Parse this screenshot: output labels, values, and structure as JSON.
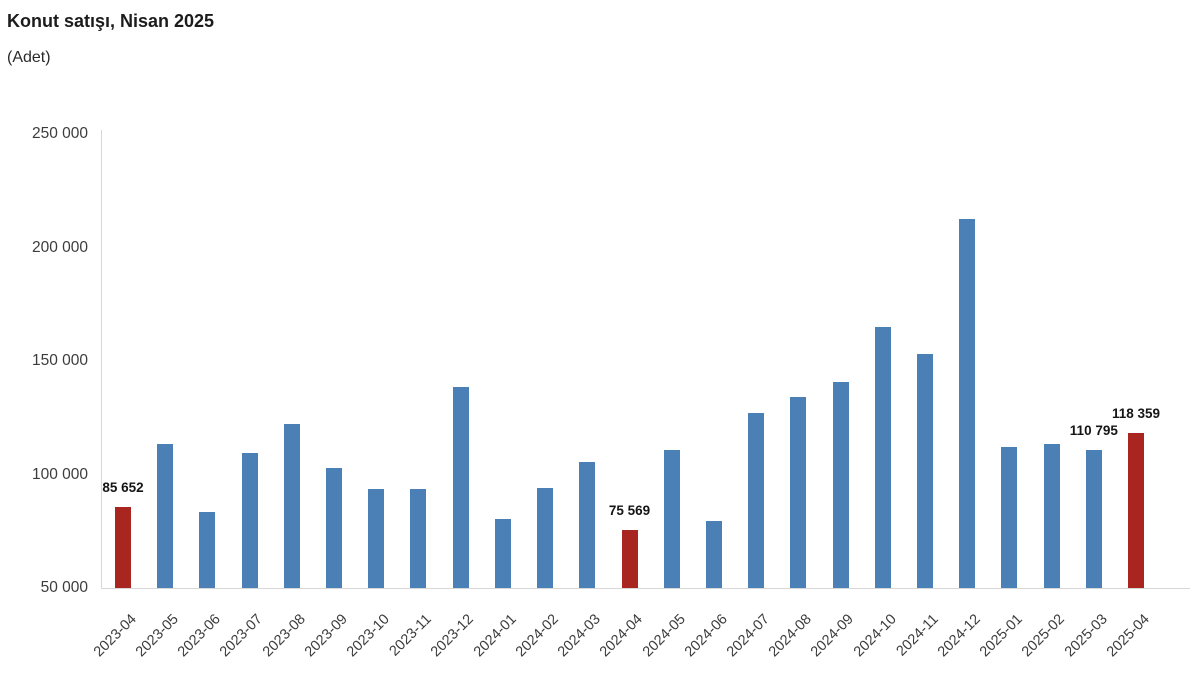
{
  "page": {
    "title": "Konut satışı, Nisan 2025",
    "subtitle": "(Adet)"
  },
  "colors": {
    "bar_blue": "#4a80b6",
    "bar_red": "#a8261f",
    "axis_line": "#d8d8d8",
    "tick_text": "#3c3c3c",
    "value_label_text": "#151515",
    "title_text": "#1c1c1c",
    "background": "#ffffff"
  },
  "chart_data": {
    "type": "bar",
    "title": "Konut satışı, Nisan 2025",
    "ylabel": "(Adet)",
    "xlabel": "",
    "categories": [
      "2023-04",
      "2023-05",
      "2023-06",
      "2023-07",
      "2023-08",
      "2023-09",
      "2023-10",
      "2023-11",
      "2023-12",
      "2024-01",
      "2024-02",
      "2024-03",
      "2024-04",
      "2024-05",
      "2024-06",
      "2024-07",
      "2024-08",
      "2024-09",
      "2024-10",
      "2024-11",
      "2024-12",
      "2025-01",
      "2025-02",
      "2025-03",
      "2025-04"
    ],
    "values": [
      85652,
      113584,
      83636,
      109548,
      122091,
      102656,
      93761,
      93514,
      138577,
      80308,
      93902,
      105476,
      75569,
      110588,
      79313,
      127088,
      134155,
      140919,
      165138,
      153014,
      212637,
      112173,
      113621,
      110795,
      118359
    ],
    "highlight_indices": [
      0,
      12,
      24
    ],
    "value_labels": {
      "0": "85 652",
      "12": "75 569",
      "23": "110 795",
      "24": "118 359"
    },
    "ylim": [
      50000,
      250000
    ],
    "ytick_values": [
      50000,
      100000,
      150000,
      200000,
      250000
    ],
    "ytick_labels": [
      "50 000",
      "100 000",
      "150 000",
      "200 000",
      "250 000"
    ],
    "grid": false,
    "legend": false,
    "x_tick_rotation_deg": -45
  }
}
